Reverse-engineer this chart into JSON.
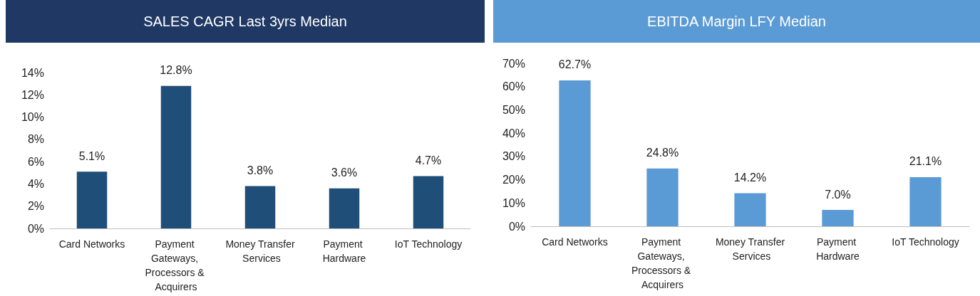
{
  "chart_data": [
    {
      "type": "bar",
      "title": "SALES CAGR Last 3yrs Median",
      "categories": [
        "Card Networks",
        "Payment Gateways, Processors & Acquirers",
        "Money Transfer Services",
        "Payment Hardware",
        "IoT Technology"
      ],
      "values": [
        5.1,
        12.8,
        3.8,
        3.6,
        4.7
      ],
      "color": "#1f4e79",
      "ylim": [
        0,
        14
      ],
      "yticks": [
        {
          "value": 0,
          "label": "0%"
        },
        {
          "value": 2,
          "label": "2%"
        },
        {
          "value": 4,
          "label": "4%"
        },
        {
          "value": 6,
          "label": "6%"
        },
        {
          "value": 8,
          "label": "8%"
        },
        {
          "value": 10,
          "label": "10%"
        },
        {
          "value": 12,
          "label": "12%"
        },
        {
          "value": 14,
          "label": "14%"
        }
      ],
      "value_labels": [
        "5.1%",
        "12.8%",
        "3.8%",
        "3.6%",
        "4.7%"
      ],
      "grid": false
    },
    {
      "type": "bar",
      "title": "EBITDA Margin LFY Median",
      "categories": [
        "Card Networks",
        "Payment Gateways, Processors & Acquirers",
        "Money Transfer Services",
        "Payment Hardware",
        "IoT Technology"
      ],
      "values": [
        62.7,
        24.8,
        14.2,
        7.0,
        21.1
      ],
      "color": "#5b9bd5",
      "ylim": [
        0,
        70
      ],
      "yticks": [
        {
          "value": 0,
          "label": "0%"
        },
        {
          "value": 10,
          "label": "10%"
        },
        {
          "value": 20,
          "label": "20%"
        },
        {
          "value": 30,
          "label": "30%"
        },
        {
          "value": 40,
          "label": "40%"
        },
        {
          "value": 50,
          "label": "50%"
        },
        {
          "value": 60,
          "label": "60%"
        },
        {
          "value": 70,
          "label": "70%"
        }
      ],
      "value_labels": [
        "62.7%",
        "24.8%",
        "14.2%",
        "7.0%",
        "21.1%"
      ],
      "grid": false
    }
  ]
}
